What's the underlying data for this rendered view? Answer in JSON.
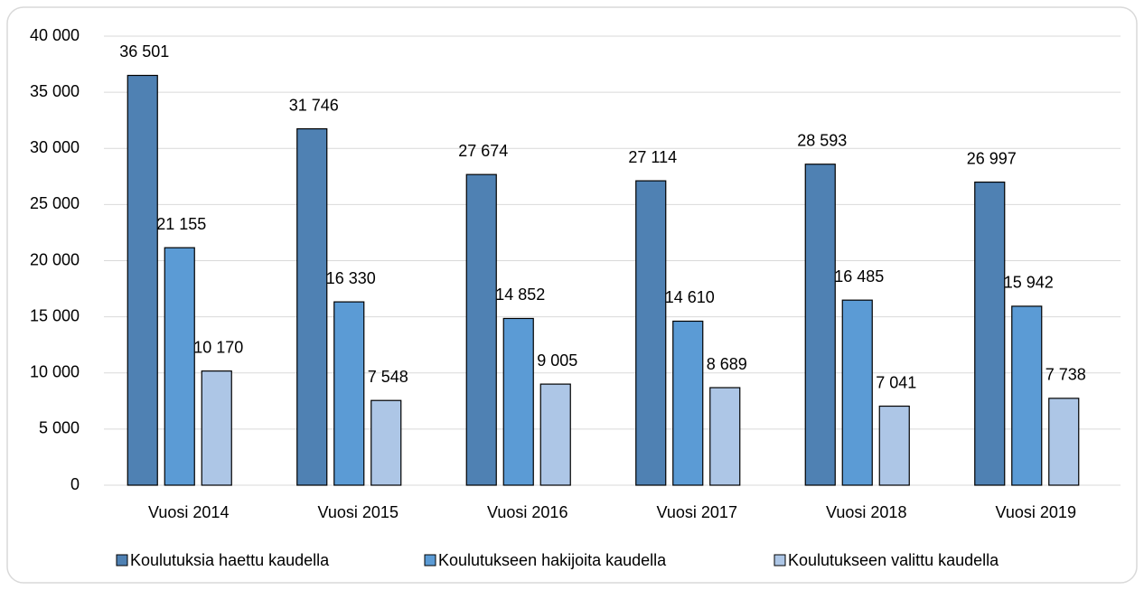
{
  "chart_data": {
    "type": "bar",
    "categories": [
      "Vuosi 2014",
      "Vuosi 2015",
      "Vuosi 2016",
      "Vuosi 2017",
      "Vuosi 2018",
      "Vuosi 2019"
    ],
    "series": [
      {
        "name": "Koulutuksia haettu kaudella",
        "color": "#4f81b3",
        "values": [
          36501,
          31746,
          27674,
          27114,
          28593,
          26997
        ],
        "value_labels": [
          "36 501",
          "31 746",
          "27 674",
          "27 114",
          "28 593",
          "26 997"
        ]
      },
      {
        "name": "Koulutukseen hakijoita kaudella",
        "color": "#5b9bd5",
        "values": [
          21155,
          16330,
          14852,
          14610,
          16485,
          15942
        ],
        "value_labels": [
          "21 155",
          "16 330",
          "14 852",
          "14 610",
          "16 485",
          "15 942"
        ]
      },
      {
        "name": "Koulutukseen valittu kaudella",
        "color": "#adc6e6",
        "values": [
          10170,
          7548,
          9005,
          8689,
          7041,
          7738
        ],
        "value_labels": [
          "10 170",
          "7 548",
          "9 005",
          "8 689",
          "7 041",
          "7 738"
        ]
      }
    ],
    "ylim": [
      0,
      40000
    ],
    "yticks": [
      0,
      {
        "value": 5000,
        "label": "5 000"
      },
      {
        "value": 10000,
        "label": "10 000"
      },
      {
        "value": 15000,
        "label": "15 000"
      },
      {
        "value": 20000,
        "label": "20 000"
      },
      {
        "value": 25000,
        "label": "25 000"
      },
      {
        "value": 30000,
        "label": "30 000"
      },
      {
        "value": 35000,
        "label": "35 000"
      },
      {
        "value": 40000,
        "label": "40 000"
      }
    ],
    "grid": true,
    "legend": "bottom"
  }
}
